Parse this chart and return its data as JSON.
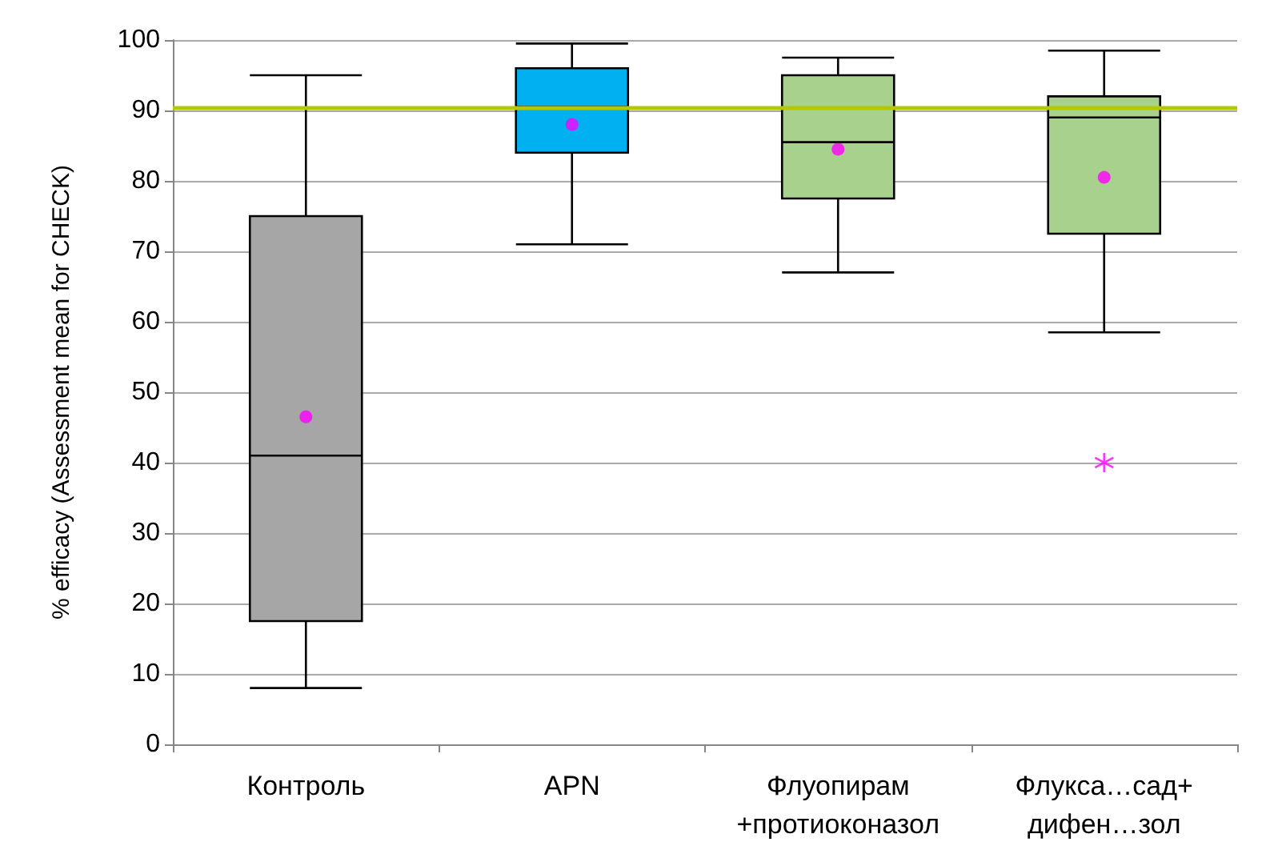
{
  "chart_data": {
    "type": "box",
    "ylabel": "% efficacy (Assessment mean for CHECK)",
    "categories": [
      "Контроль",
      "APN",
      "Флуопирам +протиоконазол",
      "Флукса…сад+ дифен…зол"
    ],
    "series": [
      {
        "type": "box",
        "colors": [
          "#a6a6a6",
          "#00b0f0",
          "#a9d18e",
          "#a9d18e"
        ],
        "boxes": [
          {
            "low": 8,
            "q1": 17.5,
            "median": 41,
            "q3": 75,
            "high": 95
          },
          {
            "low": 71,
            "q1": 84,
            "median": 90.5,
            "q3": 96,
            "high": 99.5
          },
          {
            "low": 67,
            "q1": 77.5,
            "median": 85.5,
            "q3": 95,
            "high": 97.5
          },
          {
            "low": 58.5,
            "q1": 72.5,
            "median": 89,
            "q3": 92,
            "high": 98.5
          }
        ]
      },
      {
        "type": "scatter",
        "marker": "circle",
        "color": "#ff00ff",
        "x": [
          "Контроль",
          "APN",
          "Флуопирам +протиоконазол",
          "Флукса…сад+ дифен…зол"
        ],
        "values": [
          46.5,
          88,
          84.5,
          80.5
        ]
      },
      {
        "type": "scatter",
        "marker": "cross",
        "color": "#ff00ff",
        "x": [
          "Флукса…сад+ дифен…зол"
        ],
        "values": [
          40
        ]
      }
    ],
    "ylim": [
      0,
      100
    ],
    "yticks": [
      0,
      10,
      20,
      30,
      40,
      50,
      60,
      70,
      80,
      90,
      100
    ],
    "grid": "y",
    "ref_lines": [
      {
        "axis": "y",
        "value": 90.5,
        "color": "#b4c800"
      }
    ]
  }
}
